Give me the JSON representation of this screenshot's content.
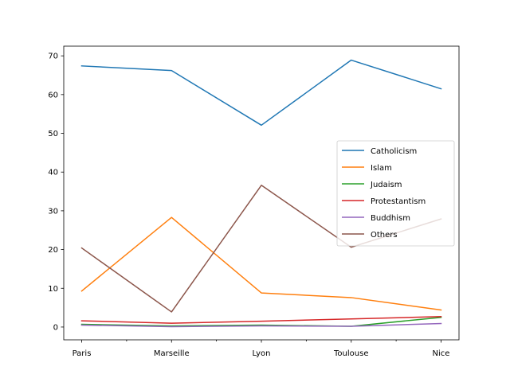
{
  "chart_data": {
    "type": "line",
    "title": "",
    "xlabel": "",
    "ylabel": "",
    "categories": [
      "Paris",
      "Marseille",
      "Lyon",
      "Toulouse",
      "Nice"
    ],
    "ylim": [
      -3.3,
      72.5
    ],
    "yticks": [
      0,
      10,
      20,
      30,
      40,
      50,
      60,
      70
    ],
    "ytick_labels": [
      "0",
      "10",
      "20",
      "30",
      "40",
      "50",
      "60",
      "70"
    ],
    "minor_x_ticks": true,
    "grid": false,
    "legend": "center-right",
    "series": [
      {
        "name": "Catholicism",
        "color": "#1f77b4",
        "values": [
          67.4,
          66.2,
          52.1,
          68.9,
          61.5
        ]
      },
      {
        "name": "Islam",
        "color": "#ff7f0e",
        "values": [
          9.3,
          28.3,
          8.8,
          7.6,
          4.4
        ]
      },
      {
        "name": "Judaism",
        "color": "#2ca02c",
        "values": [
          0.7,
          0.3,
          0.5,
          0.2,
          2.5
        ]
      },
      {
        "name": "Protestantism",
        "color": "#d62728",
        "values": [
          1.6,
          1.0,
          1.5,
          2.1,
          2.7
        ]
      },
      {
        "name": "Buddhism",
        "color": "#9467bd",
        "values": [
          0.5,
          0.1,
          0.3,
          0.2,
          0.9
        ]
      },
      {
        "name": "Others",
        "color": "#8c564b",
        "values": [
          20.4,
          3.9,
          36.6,
          20.6,
          27.9
        ]
      }
    ]
  }
}
